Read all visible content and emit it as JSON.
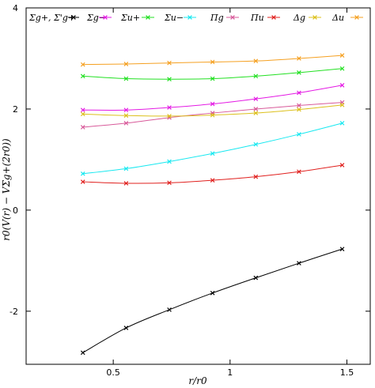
{
  "chart_data": {
    "type": "line",
    "xlabel": "r/r0",
    "ylabel": "r0(V(r) − VΣg+(2r0))",
    "xlim": [
      0.2,
      1.65
    ],
    "ylim": [
      -3,
      4
    ],
    "xticks": [
      0.5,
      1,
      1.5
    ],
    "xtick_labels": [
      "0.5",
      "1",
      "1.5"
    ],
    "yticks": [
      -2,
      0,
      2,
      4
    ],
    "ytick_labels": [
      "-2",
      "0",
      "2",
      "4"
    ],
    "grid": false,
    "legend_placement": "top",
    "x": [
      0.37,
      0.555,
      0.74,
      0.925,
      1.11,
      1.295,
      1.48
    ],
    "series": [
      {
        "name": "Σg+, Σ'g+",
        "color": "#000000",
        "values": [
          -2.82,
          -2.33,
          -1.97,
          -1.64,
          -1.34,
          -1.05,
          -0.77
        ]
      },
      {
        "name": "Σg−",
        "color": "#e41ae4",
        "values": [
          1.98,
          1.98,
          2.03,
          2.1,
          2.2,
          2.32,
          2.47
        ]
      },
      {
        "name": "Σu+",
        "color": "#22e022",
        "values": [
          2.65,
          2.6,
          2.59,
          2.6,
          2.65,
          2.72,
          2.8
        ]
      },
      {
        "name": "Σu−",
        "color": "#18e8f0",
        "values": [
          0.72,
          0.82,
          0.96,
          1.12,
          1.3,
          1.5,
          1.72
        ]
      },
      {
        "name": "Πg",
        "color": "#d85a9a",
        "values": [
          1.64,
          1.72,
          1.83,
          1.92,
          2.0,
          2.07,
          2.13
        ]
      },
      {
        "name": "Πu",
        "color": "#e0201e",
        "values": [
          0.56,
          0.53,
          0.54,
          0.59,
          0.66,
          0.76,
          0.89
        ]
      },
      {
        "name": "Δg",
        "color": "#dcc01c",
        "values": [
          1.9,
          1.87,
          1.86,
          1.88,
          1.92,
          1.99,
          2.08
        ]
      },
      {
        "name": "Δu",
        "color": "#f5a021",
        "values": [
          2.88,
          2.89,
          2.91,
          2.93,
          2.95,
          3.0,
          3.06
        ]
      }
    ]
  }
}
